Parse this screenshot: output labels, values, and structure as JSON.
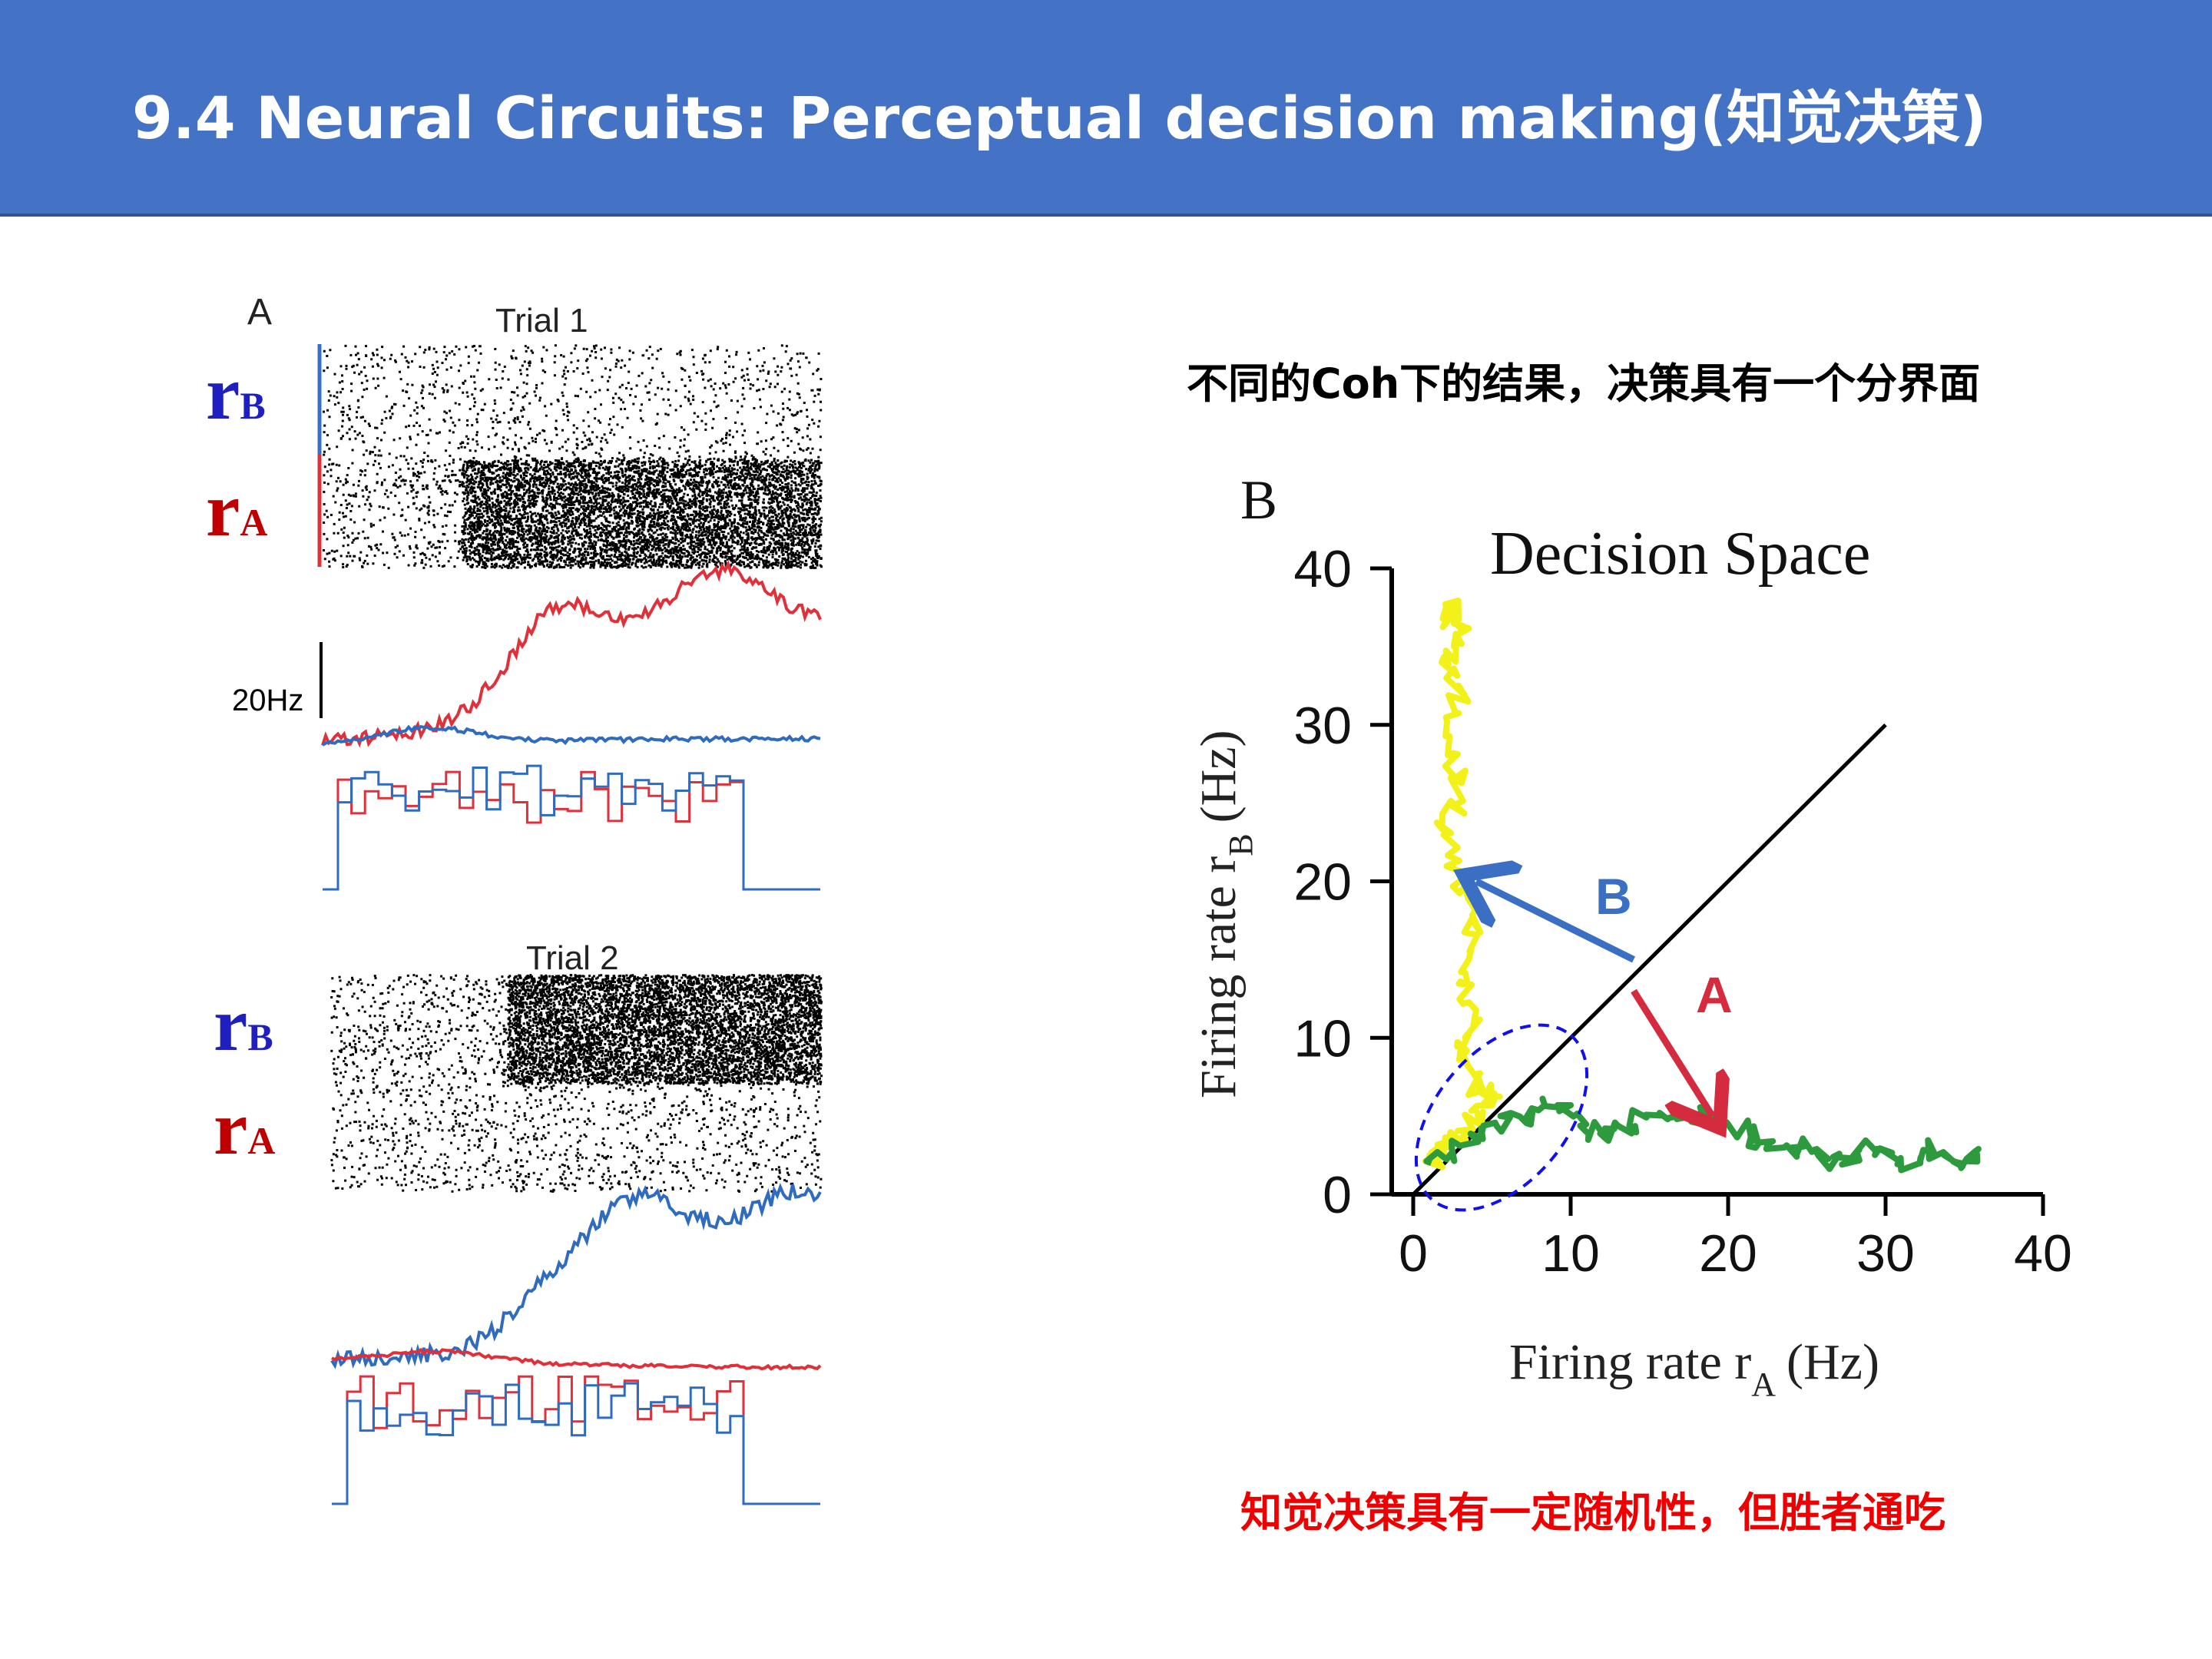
{
  "slide": {
    "title": "9.4 Neural Circuits: Perceptual decision making(知觉决策)",
    "caption_top": "不同的Coh下的结果，决策具有一个分界面",
    "caption_bottom": "知觉决策具有一定随机性，但胜者通吃"
  },
  "panel_a": {
    "letter": "A",
    "trial1_label": "Trial 1",
    "trial2_label": "Trial 2",
    "scale_label": "20Hz",
    "rB_main": "r",
    "rB_sub": "B",
    "rA_main": "r",
    "rA_sub": "A"
  },
  "panel_b": {
    "letter": "B",
    "title": "Decision Space",
    "xlabel": "Firing rate r",
    "xlabel_sub": "A",
    "xlabel_unit": "(Hz)",
    "ylabel": "Firing rate r",
    "ylabel_sub": "B",
    "ylabel_unit": "(Hz)",
    "arrow_b_label": "B",
    "arrow_a_label": "A"
  },
  "colors": {
    "title_bg": "#4472c4",
    "rB_blue": "#1f1fbf",
    "rA_red": "#c00000",
    "trace_red": "#e0303a",
    "trace_blue": "#2f6bbf",
    "trajectory_yellow": "#f2f21a",
    "trajectory_green": "#2e9a3e",
    "arrow_blue": "#3a6fc4",
    "arrow_red": "#d42b3e",
    "ellipse": "#1010ee"
  },
  "chart_data": {
    "type": "line",
    "title": "Decision Space",
    "xlabel": "Firing rate rA (Hz)",
    "ylabel": "Firing rate rB (Hz)",
    "xlim": [
      0,
      40
    ],
    "ylim": [
      0,
      40
    ],
    "xticks": [
      0,
      10,
      20,
      30,
      40
    ],
    "yticks": [
      0,
      10,
      20,
      30,
      40
    ],
    "grid": false,
    "diagonal": [
      [
        0,
        0
      ],
      [
        30,
        30
      ]
    ],
    "series": [
      {
        "name": "B",
        "color": "yellow",
        "x": [
          1,
          2,
          3,
          4,
          5,
          4,
          3,
          4,
          3,
          4,
          3,
          2,
          3,
          2,
          3,
          2,
          3,
          2,
          3
        ],
        "y": [
          2,
          3,
          4,
          5,
          6,
          7,
          9,
          11,
          14,
          17,
          20,
          23,
          26,
          29,
          32,
          34,
          36,
          37,
          38
        ]
      },
      {
        "name": "A",
        "color": "green",
        "x": [
          1,
          3,
          5,
          7,
          9,
          11,
          13,
          15,
          17,
          19,
          21,
          23,
          25,
          27,
          29,
          31,
          33,
          35,
          36
        ],
        "y": [
          2,
          3,
          4,
          5,
          6,
          4,
          4,
          5,
          5,
          5,
          4,
          3,
          3,
          2,
          3,
          2,
          3,
          2,
          3
        ]
      }
    ],
    "annotations": [
      {
        "label": "B",
        "from": [
          14,
          15
        ],
        "to": [
          4,
          20
        ]
      },
      {
        "label": "A",
        "from": [
          14,
          13
        ],
        "to": [
          19,
          5
        ]
      }
    ]
  }
}
